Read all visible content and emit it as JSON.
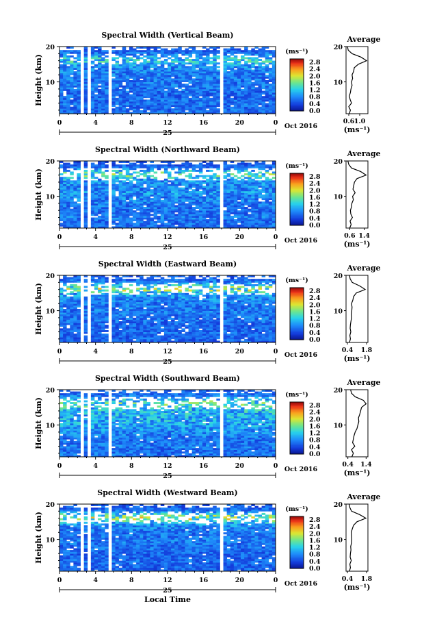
{
  "figure": {
    "date_label": "Oct 2016",
    "day_label": "25",
    "xlabel": "Local Time",
    "ylabel": "Height (km)",
    "unit_label": "(ms⁻¹)",
    "average_title": "Average"
  },
  "chart_data": [
    {
      "type": "heatmap",
      "title": "Spectral Width (Vertical Beam)",
      "x_ticks": [
        "0",
        "4",
        "8",
        "12",
        "16",
        "20",
        "0"
      ],
      "xlim": [
        0,
        24
      ],
      "y_ticks": [
        "10",
        "20"
      ],
      "ylim": [
        1,
        20
      ],
      "colorbar": {
        "ticks": [
          "2.8",
          "2.4",
          "2.0",
          "1.6",
          "1.2",
          "0.8",
          "0.4",
          "0.0"
        ],
        "range": [
          0.0,
          3.0
        ]
      },
      "data_gaps_hours": [
        [
          2.2,
          2.6
        ],
        [
          3.0,
          3.4
        ],
        [
          5.6,
          5.8
        ],
        [
          17.7,
          18.1
        ]
      ],
      "average": {
        "title": "Average",
        "x_ticks": [
          "0.6",
          "1.0"
        ],
        "xlim": [
          0.5,
          1.3
        ],
        "y_ticks": [
          "10",
          "20"
        ],
        "ylim": [
          1,
          20
        ],
        "xlabel": "(ms⁻¹)",
        "height_km": [
          1,
          2,
          3,
          4,
          5,
          6,
          7,
          8,
          9,
          10,
          11,
          12,
          13,
          14,
          15,
          16,
          17,
          18,
          19,
          20
        ],
        "value": [
          0.62,
          0.66,
          0.6,
          0.7,
          0.65,
          0.62,
          0.66,
          0.68,
          0.72,
          0.7,
          0.74,
          0.72,
          0.78,
          0.8,
          0.95,
          1.25,
          1.05,
          0.72,
          0.58,
          0.55
        ]
      }
    },
    {
      "type": "heatmap",
      "title": "Spectral Width (Northward Beam)",
      "x_ticks": [
        "0",
        "4",
        "8",
        "12",
        "16",
        "20",
        "0"
      ],
      "xlim": [
        0,
        24
      ],
      "y_ticks": [
        "10",
        "20"
      ],
      "ylim": [
        1,
        20
      ],
      "colorbar": {
        "ticks": [
          "2.8",
          "2.4",
          "2.0",
          "1.6",
          "1.2",
          "0.8",
          "0.4",
          "0.0"
        ],
        "range": [
          0.0,
          3.0
        ]
      },
      "data_gaps_hours": [
        [
          2.2,
          2.6
        ],
        [
          3.0,
          3.4
        ],
        [
          5.6,
          5.8
        ],
        [
          17.7,
          18.1
        ]
      ],
      "average": {
        "title": "Average",
        "x_ticks": [
          "0.6",
          "1.4"
        ],
        "xlim": [
          0.4,
          1.6
        ],
        "y_ticks": [
          "10",
          "20"
        ],
        "ylim": [
          1,
          20
        ],
        "xlabel": "(ms⁻¹)",
        "height_km": [
          1,
          2,
          3,
          4,
          5,
          6,
          7,
          8,
          9,
          10,
          11,
          12,
          13,
          14,
          15,
          16,
          17,
          18,
          19,
          20
        ],
        "value": [
          0.6,
          0.68,
          0.62,
          0.75,
          0.66,
          0.64,
          0.7,
          0.72,
          0.8,
          0.76,
          0.9,
          0.78,
          0.82,
          0.86,
          1.0,
          1.5,
          1.2,
          0.7,
          0.55,
          0.5
        ]
      }
    },
    {
      "type": "heatmap",
      "title": "Spectral Width (Eastward Beam)",
      "x_ticks": [
        "0",
        "4",
        "8",
        "12",
        "16",
        "20",
        "0"
      ],
      "xlim": [
        0,
        24
      ],
      "y_ticks": [
        "10",
        "20"
      ],
      "ylim": [
        1,
        20
      ],
      "colorbar": {
        "ticks": [
          "2.8",
          "2.4",
          "2.0",
          "1.6",
          "1.2",
          "0.8",
          "0.4",
          "0.0"
        ],
        "range": [
          0.0,
          3.0
        ]
      },
      "data_gaps_hours": [
        [
          2.2,
          2.6
        ],
        [
          3.0,
          3.4
        ],
        [
          5.6,
          5.8
        ],
        [
          17.7,
          18.1
        ]
      ],
      "average": {
        "title": "Average",
        "x_ticks": [
          "0.4",
          "1.8"
        ],
        "xlim": [
          0.3,
          1.9
        ],
        "y_ticks": [
          "10",
          "20"
        ],
        "ylim": [
          1,
          20
        ],
        "xlabel": "(ms⁻¹)",
        "height_km": [
          1,
          2,
          3,
          4,
          5,
          6,
          7,
          8,
          9,
          10,
          11,
          12,
          13,
          14,
          15,
          16,
          17,
          18,
          19,
          20
        ],
        "value": [
          0.55,
          0.62,
          0.58,
          0.65,
          0.6,
          0.62,
          0.66,
          0.7,
          0.68,
          0.72,
          0.74,
          0.7,
          0.8,
          0.85,
          1.05,
          1.7,
          1.3,
          0.75,
          0.6,
          0.55
        ]
      }
    },
    {
      "type": "heatmap",
      "title": "Spectral Width (Southward Beam)",
      "x_ticks": [
        "0",
        "4",
        "8",
        "12",
        "16",
        "20",
        "0"
      ],
      "xlim": [
        0,
        24
      ],
      "y_ticks": [
        "10",
        "20"
      ],
      "ylim": [
        1,
        20
      ],
      "colorbar": {
        "ticks": [
          "2.8",
          "2.4",
          "2.0",
          "1.6",
          "1.2",
          "0.8",
          "0.4",
          "0.0"
        ],
        "range": [
          0.0,
          3.0
        ]
      },
      "data_gaps_hours": [
        [
          2.2,
          2.6
        ],
        [
          3.0,
          3.4
        ],
        [
          5.6,
          5.8
        ],
        [
          17.7,
          18.1
        ]
      ],
      "average": {
        "title": "Average",
        "x_ticks": [
          "0.4",
          "1.4"
        ],
        "xlim": [
          0.3,
          1.5
        ],
        "y_ticks": [
          "10",
          "20"
        ],
        "ylim": [
          1,
          20
        ],
        "xlabel": "(ms⁻¹)",
        "height_km": [
          1,
          2,
          3,
          4,
          5,
          6,
          7,
          8,
          9,
          10,
          11,
          12,
          13,
          14,
          15,
          16,
          17,
          18,
          19,
          20
        ],
        "value": [
          0.62,
          0.7,
          0.6,
          0.78,
          0.66,
          0.7,
          0.74,
          0.8,
          0.9,
          0.95,
          1.0,
          0.98,
          1.05,
          1.1,
          1.15,
          1.4,
          1.25,
          0.8,
          0.6,
          0.55
        ]
      }
    },
    {
      "type": "heatmap",
      "title": "Spectral Width (Westward Beam)",
      "x_ticks": [
        "0",
        "4",
        "8",
        "12",
        "16",
        "20",
        "0"
      ],
      "xlim": [
        0,
        24
      ],
      "y_ticks": [
        "10",
        "20"
      ],
      "ylim": [
        1,
        20
      ],
      "colorbar": {
        "ticks": [
          "2.8",
          "2.4",
          "2.0",
          "1.6",
          "1.2",
          "0.8",
          "0.4",
          "0.0"
        ],
        "range": [
          0.0,
          3.0
        ]
      },
      "data_gaps_hours": [
        [
          2.2,
          2.6
        ],
        [
          3.0,
          3.4
        ],
        [
          5.6,
          5.8
        ],
        [
          17.7,
          18.1
        ]
      ],
      "average": {
        "title": "Average",
        "x_ticks": [
          "0.4",
          "1.8"
        ],
        "xlim": [
          0.3,
          1.9
        ],
        "y_ticks": [
          "10",
          "20"
        ],
        "ylim": [
          1,
          20
        ],
        "xlabel": "(ms⁻¹)",
        "height_km": [
          1,
          2,
          3,
          4,
          5,
          6,
          7,
          8,
          9,
          10,
          11,
          12,
          13,
          14,
          15,
          16,
          17,
          18,
          19,
          20
        ],
        "value": [
          0.55,
          0.62,
          0.58,
          0.68,
          0.6,
          0.62,
          0.66,
          0.64,
          0.7,
          0.72,
          0.7,
          0.68,
          0.76,
          0.85,
          1.1,
          1.75,
          1.3,
          0.7,
          0.58,
          0.52
        ]
      }
    }
  ]
}
